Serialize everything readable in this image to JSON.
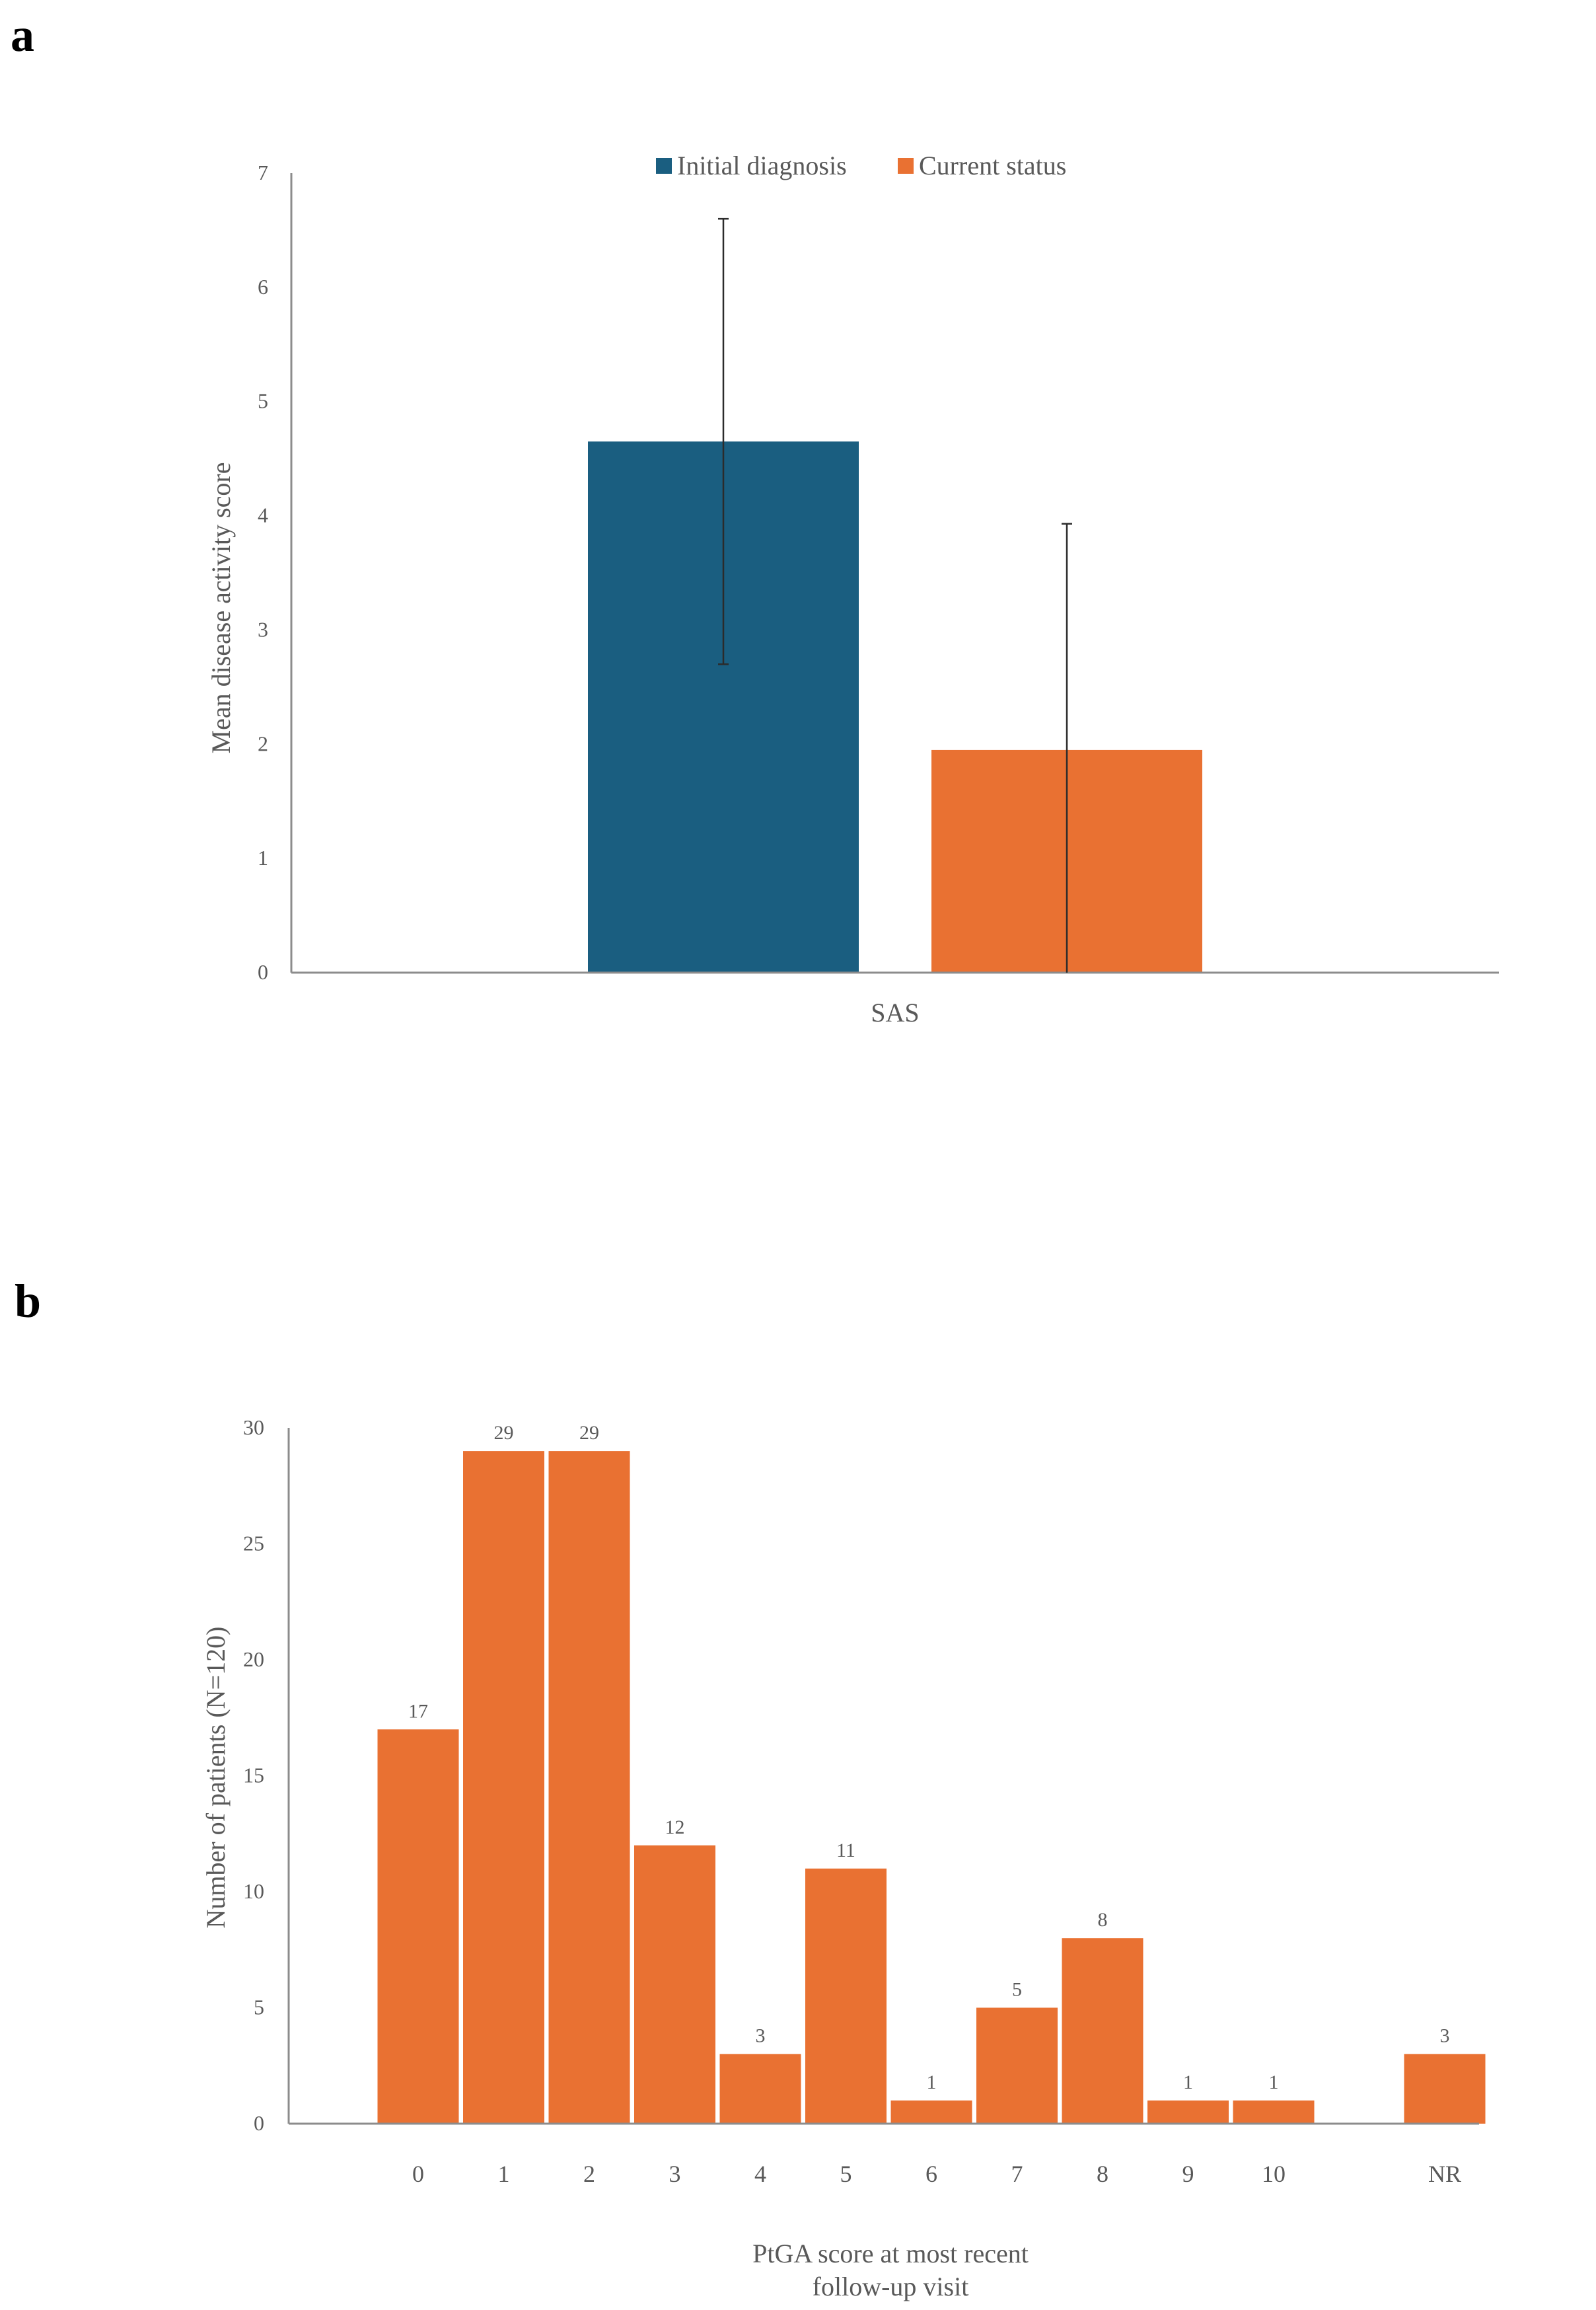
{
  "panels": {
    "a": {
      "label": "a"
    },
    "b": {
      "label": "b"
    }
  },
  "chart_data": [
    {
      "type": "bar",
      "categories": [
        "SAS"
      ],
      "series": [
        {
          "name": "Initial diagnosis",
          "values": [
            4.65
          ],
          "error": [
            1.95
          ],
          "color": "#1a5e80"
        },
        {
          "name": "Current status",
          "values": [
            1.95
          ],
          "error": [
            1.98
          ],
          "color": "#e97132"
        }
      ],
      "title": "",
      "xlabel": "",
      "ylabel": "Mean disease activity score",
      "ylim": [
        0,
        7
      ],
      "yticks": [
        0,
        1,
        2,
        3,
        4,
        5,
        6,
        7
      ],
      "legend": "top-center",
      "grid": false
    },
    {
      "type": "bar",
      "categories": [
        "0",
        "1",
        "2",
        "3",
        "4",
        "5",
        "6",
        "7",
        "8",
        "9",
        "10",
        "",
        "NR"
      ],
      "values": [
        17,
        29,
        29,
        12,
        3,
        11,
        1,
        5,
        8,
        1,
        1,
        null,
        3
      ],
      "data_labels": [
        "17",
        "29",
        "29",
        "12",
        "3",
        "11",
        "1",
        "5",
        "8",
        "1",
        "1",
        "",
        "3"
      ],
      "color": "#e97132",
      "title": "",
      "xlabel": [
        "PtGA score at most recent",
        "follow-up visit"
      ],
      "ylabel": "Number of patients (N=120)",
      "ylim": [
        0,
        30
      ],
      "yticks": [
        0,
        5,
        10,
        15,
        20,
        25,
        30
      ],
      "grid": false
    }
  ]
}
